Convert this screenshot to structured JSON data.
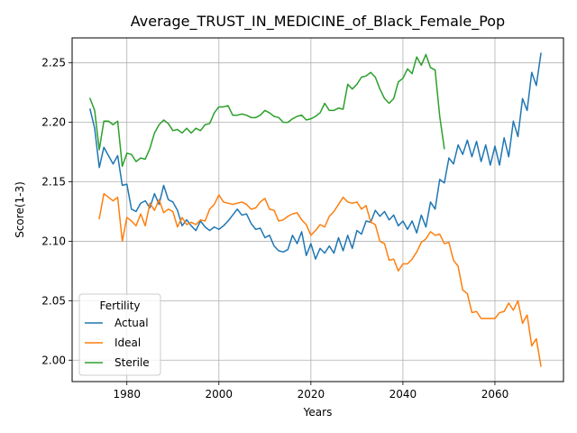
{
  "chart_data": {
    "type": "line",
    "title": "Average_TRUST_IN_MEDICINE_of_Black_Female_Pop",
    "xlabel": "Years",
    "ylabel": "Score(1-3)",
    "xlim": [
      1968.1,
      2074.9
    ],
    "ylim": [
      1.982,
      2.271
    ],
    "xticks": [
      1980,
      2000,
      2020,
      2040,
      2060
    ],
    "yticks": [
      2.0,
      2.05,
      2.1,
      2.15,
      2.2,
      2.25
    ],
    "xtick_labels": [
      "1980",
      "2000",
      "2020",
      "2040",
      "2060"
    ],
    "ytick_labels": [
      "2.00",
      "2.05",
      "2.10",
      "2.15",
      "2.20",
      "2.25"
    ],
    "grid": true,
    "legend": {
      "title": "Fertility",
      "position": "lower-left"
    },
    "series": [
      {
        "name": "Actual",
        "color": "#1f77b4",
        "x": [
          1972,
          1973,
          1974,
          1975,
          1976,
          1977,
          1978,
          1979,
          1980,
          1981,
          1982,
          1983,
          1984,
          1985,
          1986,
          1987,
          1988,
          1989,
          1990,
          1991,
          1992,
          1993,
          1994,
          1995,
          1996,
          1997,
          1998,
          1999,
          2000,
          2001,
          2002,
          2003,
          2004,
          2005,
          2006,
          2007,
          2008,
          2009,
          2010,
          2011,
          2012,
          2013,
          2014,
          2015,
          2016,
          2017,
          2018,
          2019,
          2020,
          2021,
          2022,
          2023,
          2024,
          2025,
          2026,
          2027,
          2028,
          2029,
          2030,
          2031,
          2032,
          2033,
          2034,
          2035,
          2036,
          2037,
          2038,
          2039,
          2040,
          2041,
          2042,
          2043,
          2044,
          2045,
          2046,
          2047,
          2048,
          2049,
          2050,
          2051,
          2052,
          2053,
          2054,
          2055,
          2056,
          2057,
          2058,
          2059,
          2060,
          2061,
          2062,
          2063,
          2064,
          2065,
          2066,
          2067,
          2068,
          2069,
          2070
        ],
        "values": [
          2.211,
          2.195,
          2.162,
          2.179,
          2.172,
          2.165,
          2.172,
          2.147,
          2.148,
          2.127,
          2.125,
          2.132,
          2.134,
          2.128,
          2.14,
          2.131,
          2.147,
          2.135,
          2.133,
          2.126,
          2.113,
          2.118,
          2.113,
          2.109,
          2.117,
          2.112,
          2.109,
          2.112,
          2.11,
          2.113,
          2.117,
          2.122,
          2.127,
          2.122,
          2.123,
          2.115,
          2.11,
          2.111,
          2.103,
          2.105,
          2.096,
          2.092,
          2.091,
          2.093,
          2.105,
          2.098,
          2.108,
          2.088,
          2.098,
          2.085,
          2.094,
          2.09,
          2.096,
          2.09,
          2.103,
          2.092,
          2.105,
          2.094,
          2.109,
          2.106,
          2.117,
          2.116,
          2.126,
          2.121,
          2.125,
          2.118,
          2.122,
          2.113,
          2.117,
          2.11,
          2.117,
          2.107,
          2.122,
          2.112,
          2.133,
          2.127,
          2.152,
          2.149,
          2.17,
          2.165,
          2.181,
          2.173,
          2.185,
          2.171,
          2.184,
          2.167,
          2.181,
          2.164,
          2.18,
          2.164,
          2.187,
          2.171,
          2.201,
          2.188,
          2.22,
          2.21,
          2.242,
          2.231,
          2.258
        ]
      },
      {
        "name": "Ideal",
        "color": "#ff7f0e",
        "x": [
          1974,
          1975,
          1976,
          1977,
          1978,
          1979,
          1980,
          1981,
          1982,
          1983,
          1984,
          1985,
          1986,
          1987,
          1988,
          1989,
          1990,
          1991,
          1992,
          1993,
          1994,
          1995,
          1996,
          1997,
          1998,
          1999,
          2000,
          2001,
          2002,
          2003,
          2004,
          2005,
          2006,
          2007,
          2008,
          2009,
          2010,
          2011,
          2012,
          2013,
          2014,
          2015,
          2016,
          2017,
          2018,
          2019,
          2020,
          2021,
          2022,
          2023,
          2024,
          2025,
          2026,
          2027,
          2028,
          2029,
          2030,
          2031,
          2032,
          2033,
          2034,
          2035,
          2036,
          2037,
          2038,
          2039,
          2040,
          2041,
          2042,
          2043,
          2044,
          2045,
          2046,
          2047,
          2048,
          2049,
          2050,
          2051,
          2052,
          2053,
          2054,
          2055,
          2056,
          2057,
          2058,
          2059,
          2060,
          2061,
          2062,
          2063,
          2064,
          2065,
          2066,
          2067,
          2068,
          2069,
          2070
        ],
        "values": [
          2.119,
          2.14,
          2.137,
          2.134,
          2.137,
          2.1,
          2.12,
          2.117,
          2.113,
          2.123,
          2.113,
          2.132,
          2.126,
          2.135,
          2.124,
          2.127,
          2.125,
          2.112,
          2.12,
          2.114,
          2.116,
          2.114,
          2.118,
          2.117,
          2.127,
          2.131,
          2.139,
          2.133,
          2.132,
          2.131,
          2.132,
          2.133,
          2.131,
          2.127,
          2.128,
          2.133,
          2.136,
          2.127,
          2.126,
          2.117,
          2.118,
          2.121,
          2.123,
          2.124,
          2.118,
          2.114,
          2.105,
          2.109,
          2.114,
          2.112,
          2.121,
          2.125,
          2.131,
          2.137,
          2.133,
          2.132,
          2.133,
          2.127,
          2.13,
          2.116,
          2.114,
          2.1,
          2.098,
          2.084,
          2.085,
          2.075,
          2.081,
          2.081,
          2.085,
          2.091,
          2.099,
          2.102,
          2.108,
          2.105,
          2.106,
          2.098,
          2.099,
          2.084,
          2.079,
          2.059,
          2.056,
          2.04,
          2.041,
          2.035,
          2.035,
          2.035,
          2.035,
          2.04,
          2.041,
          2.048,
          2.042,
          2.05,
          2.031,
          2.038,
          2.012,
          2.018,
          1.995
        ]
      },
      {
        "name": "Sterile",
        "color": "#2ca02c",
        "x": [
          1972,
          1973,
          1974,
          1975,
          1976,
          1977,
          1978,
          1979,
          1980,
          1981,
          1982,
          1983,
          1984,
          1985,
          1986,
          1987,
          1988,
          1989,
          1990,
          1991,
          1992,
          1993,
          1994,
          1995,
          1996,
          1997,
          1998,
          1999,
          2000,
          2001,
          2002,
          2003,
          2004,
          2005,
          2006,
          2007,
          2008,
          2009,
          2010,
          2011,
          2012,
          2013,
          2014,
          2015,
          2016,
          2017,
          2018,
          2019,
          2020,
          2021,
          2022,
          2023,
          2024,
          2025,
          2026,
          2027,
          2028,
          2029,
          2030,
          2031,
          2032,
          2033,
          2034,
          2035,
          2036,
          2037,
          2038,
          2039,
          2040,
          2041,
          2042,
          2043,
          2044,
          2045,
          2046,
          2047,
          2048,
          2049
        ],
        "values": [
          2.22,
          2.21,
          2.177,
          2.201,
          2.201,
          2.198,
          2.201,
          2.163,
          2.174,
          2.173,
          2.167,
          2.17,
          2.169,
          2.178,
          2.191,
          2.198,
          2.202,
          2.199,
          2.193,
          2.194,
          2.191,
          2.195,
          2.191,
          2.195,
          2.193,
          2.198,
          2.199,
          2.208,
          2.213,
          2.213,
          2.214,
          2.206,
          2.206,
          2.207,
          2.206,
          2.204,
          2.204,
          2.206,
          2.21,
          2.208,
          2.205,
          2.204,
          2.2,
          2.2,
          2.203,
          2.205,
          2.206,
          2.202,
          2.203,
          2.205,
          2.208,
          2.216,
          2.21,
          2.21,
          2.212,
          2.211,
          2.232,
          2.228,
          2.232,
          2.238,
          2.239,
          2.242,
          2.238,
          2.228,
          2.22,
          2.216,
          2.22,
          2.234,
          2.237,
          2.245,
          2.241,
          2.255,
          2.248,
          2.257,
          2.246,
          2.244,
          2.205,
          2.178
        ]
      }
    ]
  }
}
